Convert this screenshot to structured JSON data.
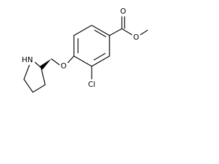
{
  "atoms": {
    "carbonyl_oxygen": "O",
    "ester_oxygen": "O",
    "chlorine": "Cl",
    "ether_oxygen": "O",
    "amine": "HN"
  }
}
